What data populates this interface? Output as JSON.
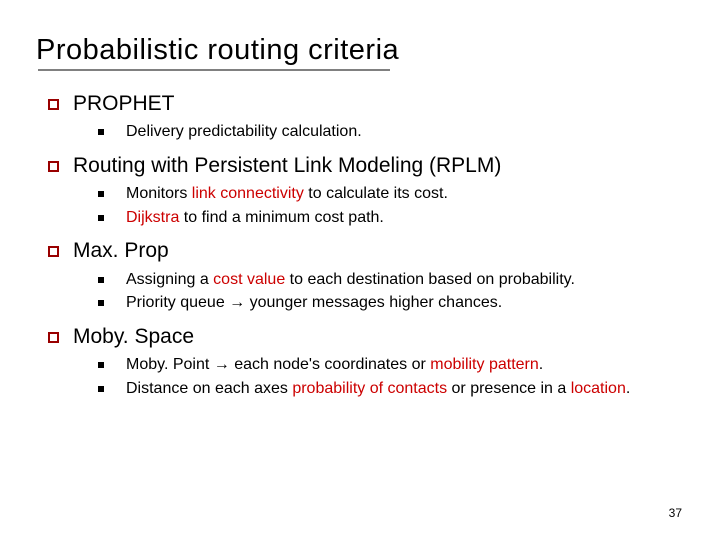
{
  "title": "Probabilistic routing criteria",
  "page_number": "37",
  "colors": {
    "bullet_l1_border": "#990000",
    "highlight": "#cc0000",
    "underline": "#808080",
    "text": "#000000",
    "background": "#ffffff"
  },
  "items": [
    {
      "label": "PROPHET",
      "sub": [
        {
          "parts": [
            {
              "t": "Delivery predictability calculation."
            }
          ]
        }
      ]
    },
    {
      "label": "Routing with Persistent Link Modeling (RPLM)",
      "sub": [
        {
          "parts": [
            {
              "t": "Monitors "
            },
            {
              "t": "link connectivity",
              "hl": true
            },
            {
              "t": " to calculate its cost."
            }
          ]
        },
        {
          "parts": [
            {
              "t": "Dijkstra",
              "hl": true
            },
            {
              "t": " to find a minimum cost path."
            }
          ]
        }
      ]
    },
    {
      "label": "Max. Prop",
      "sub": [
        {
          "parts": [
            {
              "t": "Assigning a "
            },
            {
              "t": "cost value",
              "hl": true
            },
            {
              "t": " to each destination based on probability."
            }
          ]
        },
        {
          "parts": [
            {
              "t": "Priority queue "
            },
            {
              "t": "→",
              "arrow": true
            },
            {
              "t": " younger messages higher chances."
            }
          ]
        }
      ]
    },
    {
      "label": "Moby. Space",
      "sub": [
        {
          "parts": [
            {
              "t": "Moby. Point "
            },
            {
              "t": "→",
              "arrow": true
            },
            {
              "t": " each node's coordinates or "
            },
            {
              "t": "mobility pattern",
              "hl": true
            },
            {
              "t": "."
            }
          ]
        },
        {
          "parts": [
            {
              "t": "Distance on each axes "
            },
            {
              "t": "probability of contacts",
              "hl": true
            },
            {
              "t": " or presence in a "
            },
            {
              "t": "location",
              "hl": true
            },
            {
              "t": "."
            }
          ]
        }
      ]
    }
  ]
}
